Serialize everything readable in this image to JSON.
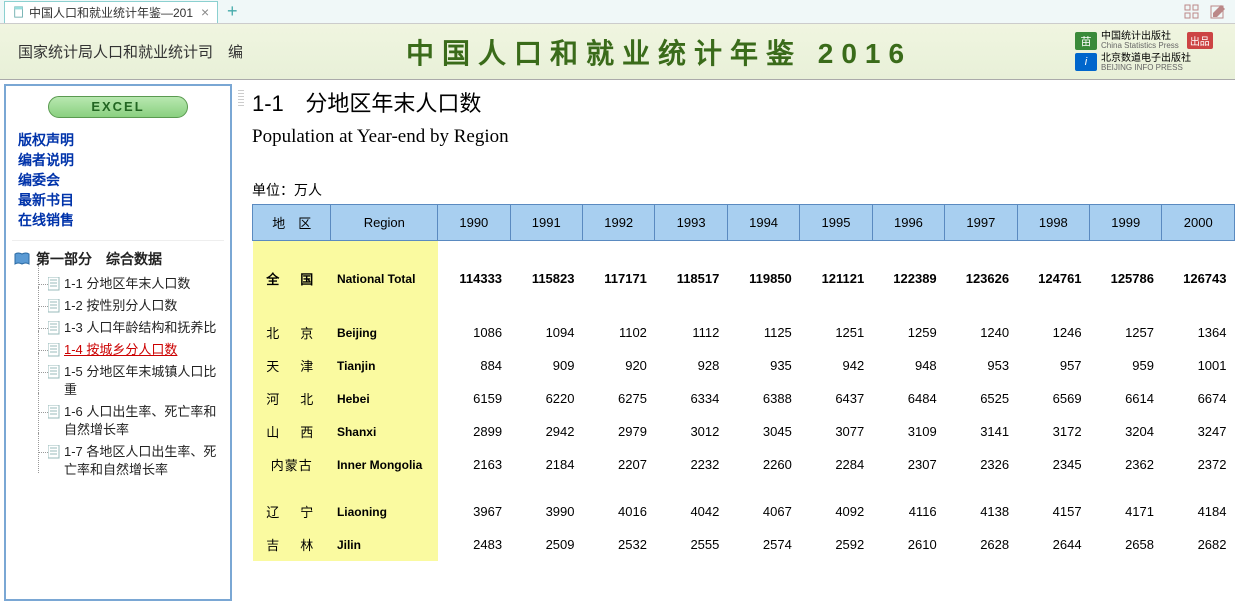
{
  "tab": {
    "title": "中国人口和就业统计年鉴—201"
  },
  "header": {
    "left": "国家统计局人口和就业统计司　编",
    "title": "中国人口和就业统计年鉴 2016",
    "logo1_cn": "中国统计出版社",
    "logo1_en": "China Statistics Press",
    "logo1_badge": "出品",
    "logo2_cn": "北京数道电子出版社",
    "logo2_en": "BEIJING INFO PRESS"
  },
  "sidebar": {
    "excel_label": "EXCEL",
    "links": [
      "版权声明",
      "编者说明",
      "编委会",
      "最新书目",
      "在线销售"
    ],
    "section_title": "第一部分　综合数据",
    "tree": [
      {
        "label": "1-1 分地区年末人口数",
        "active": false
      },
      {
        "label": "1-2 按性别分人口数",
        "active": false
      },
      {
        "label": "1-3 人口年龄结构和抚养比",
        "active": false
      },
      {
        "label": "1-4 按城乡分人口数",
        "active": true
      },
      {
        "label": "1-5 分地区年末城镇人口比重",
        "active": false
      },
      {
        "label": "1-6 人口出生率、死亡率和自然增长率",
        "active": false
      },
      {
        "label": "1-7 各地区人口出生率、死亡率和自然增长率",
        "active": false
      }
    ]
  },
  "content": {
    "code": "1-1",
    "title_cn": "分地区年末人口数",
    "title_en": "Population at Year-end by Region",
    "unit": "单位：万人",
    "header_region_cn": "地　区",
    "header_region_en": "Region",
    "years": [
      "1990",
      "1991",
      "1992",
      "1993",
      "1994",
      "1995",
      "1996",
      "1997",
      "1998",
      "1999",
      "2000"
    ],
    "total": {
      "cn": "全　国",
      "en": "National Total",
      "vals": [
        "114333",
        "115823",
        "117171",
        "118517",
        "119850",
        "121121",
        "122389",
        "123626",
        "124761",
        "125786",
        "126743"
      ]
    },
    "rows": [
      {
        "cn": "北　京",
        "en": "Beijing",
        "vals": [
          "1086",
          "1094",
          "1102",
          "1112",
          "1125",
          "1251",
          "1259",
          "1240",
          "1246",
          "1257",
          "1364"
        ]
      },
      {
        "cn": "天　津",
        "en": "Tianjin",
        "vals": [
          "884",
          "909",
          "920",
          "928",
          "935",
          "942",
          "948",
          "953",
          "957",
          "959",
          "1001"
        ]
      },
      {
        "cn": "河　北",
        "en": "Hebei",
        "vals": [
          "6159",
          "6220",
          "6275",
          "6334",
          "6388",
          "6437",
          "6484",
          "6525",
          "6569",
          "6614",
          "6674"
        ]
      },
      {
        "cn": "山　西",
        "en": "Shanxi",
        "vals": [
          "2899",
          "2942",
          "2979",
          "3012",
          "3045",
          "3077",
          "3109",
          "3141",
          "3172",
          "3204",
          "3247"
        ]
      },
      {
        "cn": "内蒙古",
        "en": "Inner Mongolia",
        "tight": true,
        "vals": [
          "2163",
          "2184",
          "2207",
          "2232",
          "2260",
          "2284",
          "2307",
          "2326",
          "2345",
          "2362",
          "2372"
        ]
      }
    ],
    "rows2": [
      {
        "cn": "辽　宁",
        "en": "Liaoning",
        "vals": [
          "3967",
          "3990",
          "4016",
          "4042",
          "4067",
          "4092",
          "4116",
          "4138",
          "4157",
          "4171",
          "4184"
        ]
      },
      {
        "cn": "吉　林",
        "en": "Jilin",
        "vals": [
          "2483",
          "2509",
          "2532",
          "2555",
          "2574",
          "2592",
          "2610",
          "2628",
          "2644",
          "2658",
          "2682"
        ]
      }
    ]
  }
}
